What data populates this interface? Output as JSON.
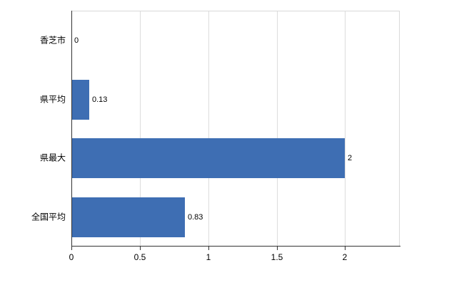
{
  "chart_data": {
    "type": "bar",
    "orientation": "horizontal",
    "title": "",
    "xlabel": "",
    "ylabel": "",
    "categories": [
      "香芝市",
      "県平均",
      "県最大",
      "全国平均"
    ],
    "values": [
      0,
      0.13,
      2,
      0.83
    ],
    "value_labels": [
      "0",
      "0.13",
      "2",
      "0.83"
    ],
    "xticks": [
      0,
      0.5,
      1,
      1.5,
      2
    ],
    "xtick_labels": [
      "0",
      "0.5",
      "1",
      "1.5",
      "2"
    ],
    "xlim": [
      0,
      2.4
    ],
    "bar_color": "#3e6eb3",
    "grid": true,
    "legend": "none"
  }
}
